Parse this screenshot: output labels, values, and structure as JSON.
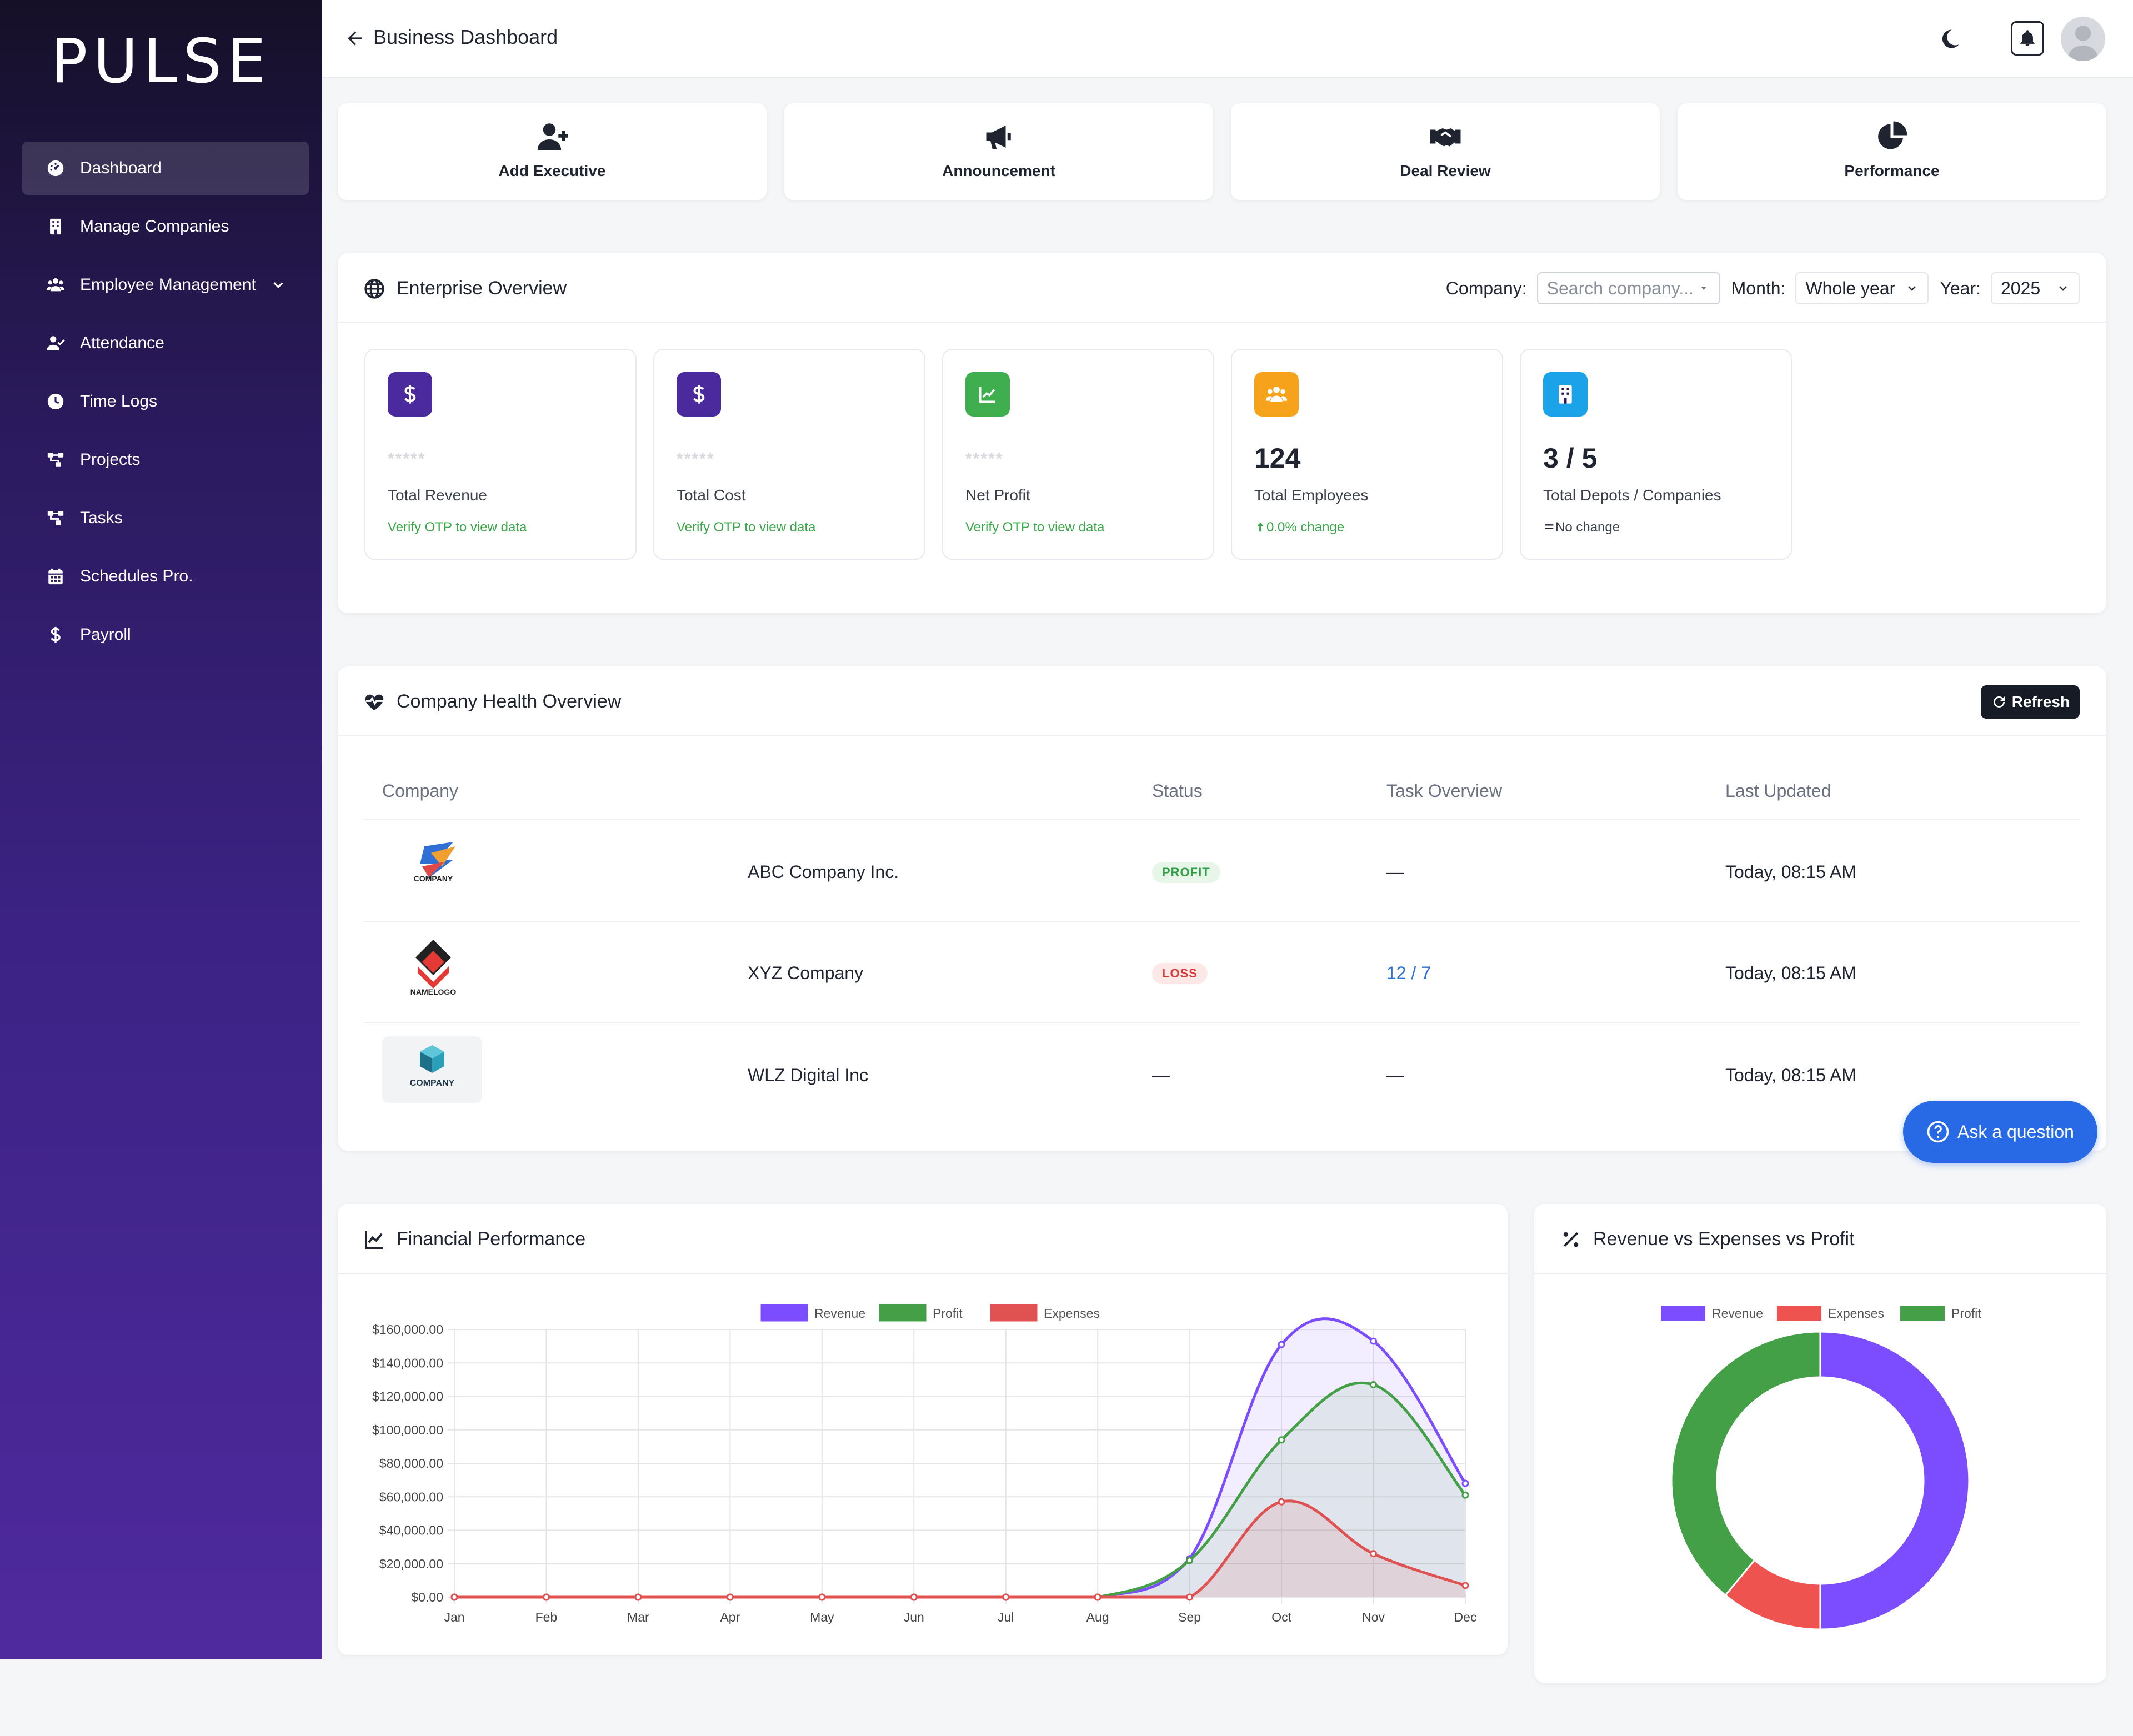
{
  "brand": "PULSE",
  "sidebar": {
    "items": [
      {
        "label": "Dashboard",
        "icon": "gauge-icon",
        "active": true
      },
      {
        "label": "Manage Companies",
        "icon": "building-icon"
      },
      {
        "label": "Employee Management",
        "icon": "users-icon",
        "has_submenu": true
      },
      {
        "label": "Attendance",
        "icon": "user-check-icon"
      },
      {
        "label": "Time Logs",
        "icon": "clock-icon"
      },
      {
        "label": "Projects",
        "icon": "sitemap-icon"
      },
      {
        "label": "Tasks",
        "icon": "sitemap-icon"
      },
      {
        "label": "Schedules Pro.",
        "icon": "calendar-icon"
      },
      {
        "label": "Payroll",
        "icon": "dollar-icon"
      }
    ]
  },
  "header": {
    "title": "Business Dashboard"
  },
  "quick_actions": [
    {
      "label": "Add Executive",
      "icon": "user-plus-icon"
    },
    {
      "label": "Announcement",
      "icon": "megaphone-icon"
    },
    {
      "label": "Deal Review",
      "icon": "handshake-icon"
    },
    {
      "label": "Performance",
      "icon": "pie-chart-icon"
    }
  ],
  "overview": {
    "title": "Enterprise Overview",
    "company_label": "Company:",
    "company_placeholder": "Search company...",
    "month_label": "Month:",
    "month_value": "Whole year",
    "year_label": "Year:",
    "year_value": "2025",
    "stats": [
      {
        "value": "*****",
        "label": "Total Revenue",
        "note": "Verify OTP to view data",
        "color": "#4b2a9e",
        "icon": "dollar-icon",
        "masked": true
      },
      {
        "value": "*****",
        "label": "Total Cost",
        "note": "Verify OTP to view data",
        "color": "#4b2a9e",
        "icon": "dollar-icon",
        "masked": true
      },
      {
        "value": "*****",
        "label": "Net Profit",
        "note": "Verify OTP to view data",
        "color": "#3fae4f",
        "icon": "chart-line-icon",
        "masked": true
      },
      {
        "value": "124",
        "label": "Total Employees",
        "note": "0.0% change",
        "color": "#f7a21b",
        "icon": "users-icon",
        "masked": false
      },
      {
        "value": "3 / 5",
        "label": "Total Depots / Companies",
        "note": "No change",
        "color": "#1aa3e8",
        "icon": "building-icon",
        "masked": false
      }
    ]
  },
  "health": {
    "title": "Company Health Overview",
    "refresh_label": "Refresh",
    "columns": [
      "Company",
      "Status",
      "Task Overview",
      "Last Updated"
    ],
    "rows": [
      {
        "logo_text": "COMPANY",
        "name": "ABC Company Inc.",
        "status": "PROFIT",
        "tasks": "—",
        "updated": "Today, 08:15 AM"
      },
      {
        "logo_text": "NAMELOGO",
        "name": "XYZ Company",
        "status": "LOSS",
        "tasks": "12 / 7",
        "updated": "Today, 08:15 AM"
      },
      {
        "logo_text": "COMPANY",
        "name": "WLZ Digital Inc",
        "status": "—",
        "tasks": "—",
        "updated": "Today, 08:15 AM"
      }
    ]
  },
  "ask_button": "Ask a question",
  "financial_title": "Financial Performance",
  "donut_title": "Revenue vs Expenses vs Profit",
  "chart_data": [
    {
      "type": "line",
      "categories": [
        "Jan",
        "Feb",
        "Mar",
        "Apr",
        "May",
        "Jun",
        "Jul",
        "Aug",
        "Sep",
        "Oct",
        "Nov",
        "Dec"
      ],
      "series": [
        {
          "name": "Revenue",
          "color": "#7c4dff",
          "values": [
            0,
            0,
            0,
            0,
            0,
            0,
            0,
            0,
            23000,
            151000,
            153000,
            68000
          ]
        },
        {
          "name": "Profit",
          "color": "#43a047",
          "values": [
            0,
            0,
            0,
            0,
            0,
            0,
            0,
            0,
            22000,
            94000,
            127000,
            61000
          ]
        },
        {
          "name": "Expenses",
          "color": "#e05252",
          "values": [
            0,
            0,
            0,
            0,
            0,
            0,
            0,
            0,
            0,
            57000,
            26000,
            7000
          ]
        }
      ],
      "y_ticks": [
        "$0.00",
        "$20,000.00",
        "$40,000.00",
        "$60,000.00",
        "$80,000.00",
        "$100,000.00",
        "$120,000.00",
        "$140,000.00",
        "$160,000.00"
      ],
      "ylim": [
        0,
        160000
      ],
      "grid": true,
      "legend": "top"
    },
    {
      "type": "pie",
      "labels": [
        "Revenue",
        "Expenses",
        "Profit"
      ],
      "colors": [
        "#7c4dff",
        "#ef5350",
        "#43a047"
      ],
      "values": [
        50,
        11,
        39
      ],
      "legend": "top"
    }
  ]
}
